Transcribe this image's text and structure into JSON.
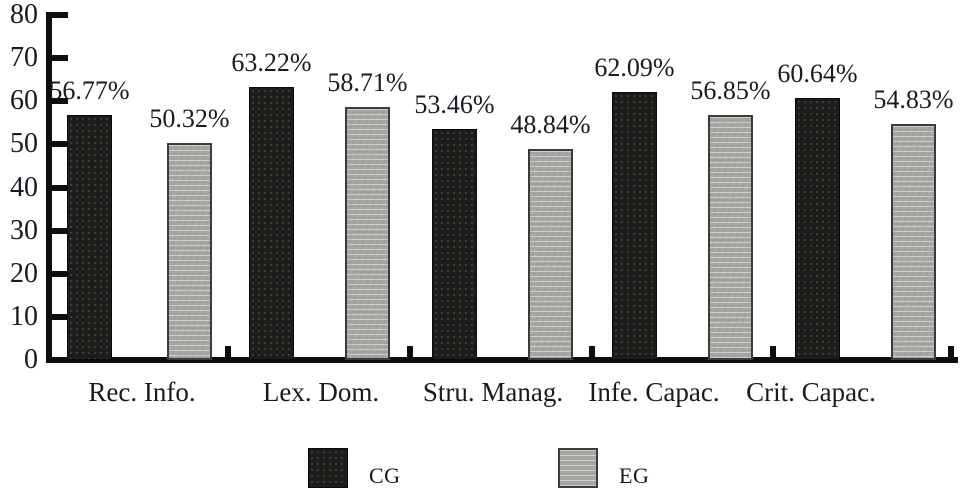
{
  "chart_data": {
    "type": "bar",
    "title": "",
    "xlabel": "",
    "ylabel": "",
    "categories": [
      "Rec. Info.",
      "Lex. Dom.",
      "Stru. Manag.",
      "Infe. Capac.",
      "Crit. Capac."
    ],
    "series": [
      {
        "name": "CG",
        "color": "#1d1c1b",
        "values": [
          56.77,
          63.22,
          53.46,
          62.09,
          60.64
        ],
        "labels": [
          "56.77%",
          "63.22%",
          "53.46%",
          "62.09%",
          "60.64%"
        ]
      },
      {
        "name": "EG",
        "color": "#a8a6a3",
        "values": [
          50.32,
          58.71,
          48.84,
          56.85,
          54.83
        ],
        "labels": [
          "50.32%",
          "58.71%",
          "48.84%",
          "56.85%",
          "54.83%"
        ]
      }
    ],
    "ylim": [
      0,
      80
    ],
    "yticks": [
      0,
      10,
      20,
      30,
      40,
      50,
      60,
      70,
      80
    ],
    "grid": false,
    "legend_position": "bottom",
    "axis_color": "#0e0e0e",
    "text_color": "#1a1a22",
    "background_color": "#ffffff"
  }
}
